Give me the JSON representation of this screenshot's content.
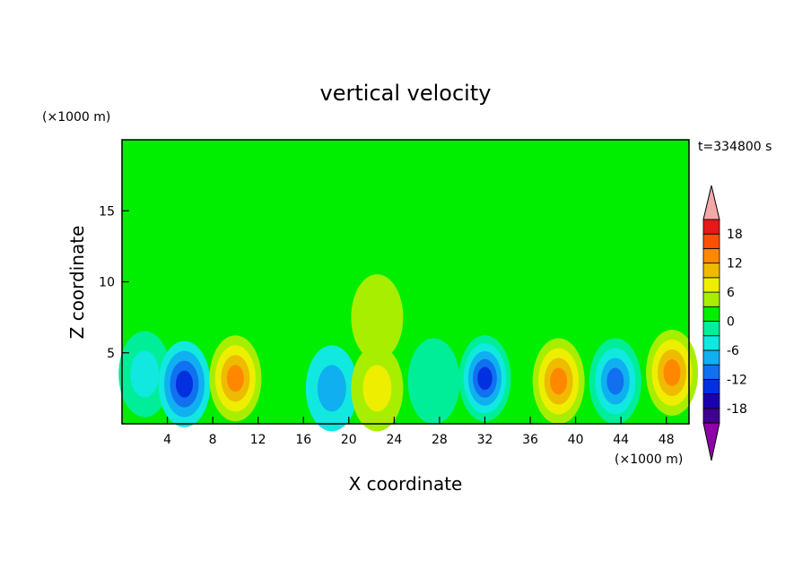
{
  "chart_data": {
    "type": "heatmap",
    "title": "vertical velocity",
    "xlabel": "X coordinate",
    "ylabel": "Z coordinate",
    "x_unit": "(×1000 m)",
    "y_unit": "(×1000 m)",
    "time_label": "t=334800 s",
    "xlim": [
      0,
      50
    ],
    "ylim": [
      0,
      20
    ],
    "x_ticks": [
      4,
      8,
      12,
      16,
      20,
      24,
      28,
      32,
      36,
      40,
      44,
      48
    ],
    "y_ticks": [
      5,
      10,
      15
    ],
    "colorbar": {
      "levels": [
        -21,
        -18,
        -15,
        -12,
        -9,
        -6,
        -3,
        0,
        3,
        6,
        9,
        12,
        15,
        18,
        21
      ],
      "tick_values": [
        -18,
        -12,
        -6,
        0,
        6,
        12,
        18
      ],
      "colors": [
        "#8f00a8",
        "#400090",
        "#1a00b0",
        "#0030e0",
        "#1070f0",
        "#10b0f0",
        "#10e8e0",
        "#00ee98",
        "#00ee00",
        "#a8ee00",
        "#eeee00",
        "#eebb00",
        "#ff8800",
        "#ff5000",
        "#e81818",
        "#f5a8a8"
      ]
    },
    "cells": [
      {
        "x": 2.0,
        "z": 3.5,
        "w": -5
      },
      {
        "x": 5.5,
        "z": 2.8,
        "w": -13
      },
      {
        "x": 10.0,
        "z": 3.2,
        "w": 13
      },
      {
        "x": 15.0,
        "z": 3.0,
        "w": 1
      },
      {
        "x": 18.5,
        "z": 2.5,
        "w": -7
      },
      {
        "x": 22.5,
        "z": 2.5,
        "w": 6
      },
      {
        "x": 22.5,
        "z": 7.5,
        "w": 3
      },
      {
        "x": 27.5,
        "z": 3.0,
        "w": -2
      },
      {
        "x": 32.0,
        "z": 3.2,
        "w": -14
      },
      {
        "x": 38.5,
        "z": 3.0,
        "w": 13
      },
      {
        "x": 43.5,
        "z": 3.0,
        "w": -12
      },
      {
        "x": 48.5,
        "z": 3.6,
        "w": 13
      },
      {
        "x": 25.0,
        "z": 14.0,
        "w": 1
      }
    ]
  }
}
